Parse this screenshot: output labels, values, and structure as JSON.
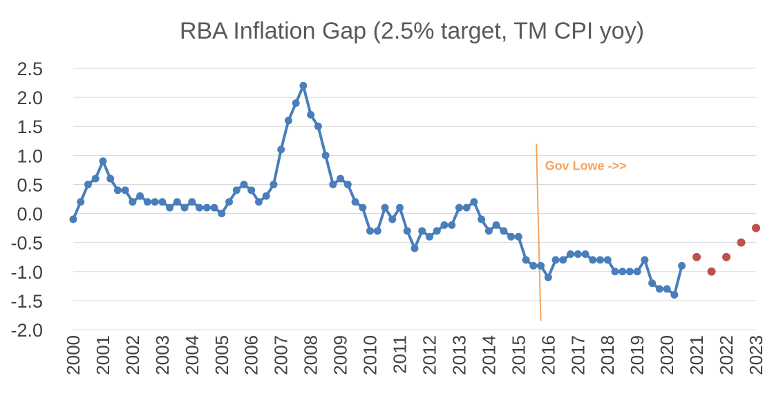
{
  "chart_data": {
    "type": "line",
    "title": "RBA Inflation Gap (2.5% target, TM CPI yoy)",
    "xlabel": "",
    "ylabel": "",
    "ylim": [
      -2.0,
      2.5
    ],
    "xlim": [
      2000,
      2023
    ],
    "y_ticks": [
      "2.5",
      "2.0",
      "1.5",
      "1.0",
      "0.5",
      "0.0",
      "-0.5",
      "-1.0",
      "-1.5",
      "-2.0"
    ],
    "x_ticks": [
      "2000",
      "2001",
      "2002",
      "2003",
      "2004",
      "2005",
      "2006",
      "2007",
      "2008",
      "2009",
      "2010",
      "2011",
      "2012",
      "2013",
      "2014",
      "2015",
      "2016",
      "2017",
      "2018",
      "2019",
      "2020",
      "2021",
      "2022",
      "2023"
    ],
    "grid": true,
    "colors": {
      "actual": "#4a7ebb",
      "forecast": "#c0504d",
      "annotation": "#f4a460",
      "grid": "#d9d9d9"
    },
    "series": [
      {
        "key": "actual",
        "start": 2000.0,
        "step": 0.25,
        "values": [
          -0.1,
          0.2,
          0.5,
          0.6,
          0.9,
          0.6,
          0.4,
          0.4,
          0.2,
          0.3,
          0.2,
          0.2,
          0.2,
          0.1,
          0.2,
          0.1,
          0.2,
          0.1,
          0.1,
          0.1,
          0.0,
          0.2,
          0.4,
          0.5,
          0.4,
          0.2,
          0.3,
          0.5,
          1.1,
          1.6,
          1.9,
          2.2,
          1.7,
          1.5,
          1.0,
          0.5,
          0.6,
          0.5,
          0.2,
          0.1,
          -0.3,
          -0.3,
          0.1,
          -0.1,
          0.1,
          -0.3,
          -0.6,
          -0.3,
          -0.4,
          -0.3,
          -0.2,
          -0.2,
          0.1,
          0.1,
          0.2,
          -0.1,
          -0.3,
          -0.2,
          -0.3,
          -0.4,
          -0.4,
          -0.8,
          -0.9,
          -0.9,
          -1.1,
          -0.8,
          -0.8,
          -0.7,
          -0.7,
          -0.7,
          -0.8,
          -0.8,
          -0.8,
          -1.0,
          -1.0,
          -1.0,
          -1.0,
          -0.8,
          -1.2,
          -1.3,
          -1.3,
          -1.4,
          -0.9
        ]
      },
      {
        "key": "forecast",
        "x": [
          2021.0,
          2021.5,
          2022.0,
          2022.5,
          2023.0
        ],
        "values": [
          -0.75,
          -1.0,
          -0.75,
          -0.5,
          -0.25
        ]
      }
    ],
    "annotations": [
      {
        "text": "Gov Lowe ->>",
        "x": 2015.75,
        "line_from": [
          2015.6,
          1.2
        ],
        "line_to": [
          2015.75,
          -1.85
        ]
      }
    ]
  }
}
